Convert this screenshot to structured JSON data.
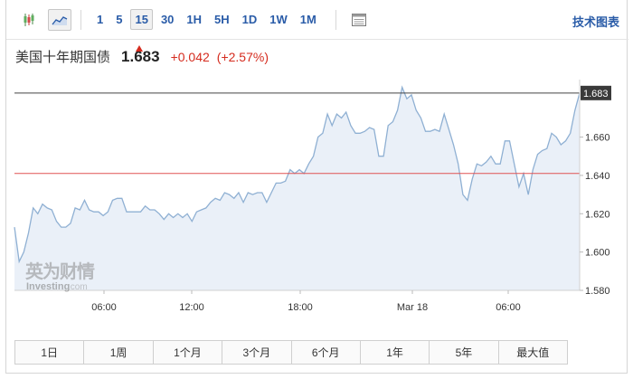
{
  "toolbar": {
    "intervals": [
      "1",
      "5",
      "15",
      "30",
      "1H",
      "5H",
      "1D",
      "1W",
      "1M"
    ],
    "active_interval": "15",
    "tech_chart_label": "技术图表"
  },
  "header": {
    "instrument": "美国十年期国债",
    "price": "1.683",
    "change": "+0.042",
    "change_pct": "(+2.57%)"
  },
  "watermark": {
    "cn": "英为财情",
    "en_main": "Investing",
    "en_suffix": ".com"
  },
  "colors": {
    "accent": "#2a5ca8",
    "negative_change": "#d52b1e",
    "line": "#8fb0d3",
    "area": "#eaf0f8",
    "prev_close_line": "#e05353"
  },
  "ranges": [
    "1日",
    "1周",
    "1个月",
    "3个月",
    "6个月",
    "1年",
    "5年",
    "最大值"
  ],
  "chart_data": {
    "type": "area",
    "y_ticks": [
      "1.580",
      "1.600",
      "1.620",
      "1.640",
      "1.660"
    ],
    "x_ticks": [
      "06:00",
      "12:00",
      "18:00",
      "Mar 18",
      "06:00"
    ],
    "ylim": [
      1.58,
      1.69
    ],
    "current_price_label": "1.683",
    "current_price": 1.683,
    "reference_line": 1.641,
    "values": [
      1.613,
      1.595,
      1.6,
      1.61,
      1.623,
      1.62,
      1.625,
      1.623,
      1.622,
      1.616,
      1.613,
      1.613,
      1.615,
      1.623,
      1.622,
      1.627,
      1.622,
      1.621,
      1.621,
      1.619,
      1.621,
      1.627,
      1.628,
      1.628,
      1.621,
      1.621,
      1.621,
      1.621,
      1.624,
      1.622,
      1.622,
      1.62,
      1.617,
      1.62,
      1.618,
      1.62,
      1.618,
      1.62,
      1.616,
      1.621,
      1.622,
      1.623,
      1.626,
      1.628,
      1.627,
      1.631,
      1.63,
      1.628,
      1.631,
      1.626,
      1.631,
      1.63,
      1.631,
      1.631,
      1.626,
      1.631,
      1.636,
      1.636,
      1.637,
      1.643,
      1.641,
      1.643,
      1.641,
      1.646,
      1.65,
      1.66,
      1.662,
      1.672,
      1.666,
      1.672,
      1.67,
      1.673,
      1.666,
      1.662,
      1.662,
      1.663,
      1.665,
      1.664,
      1.65,
      1.65,
      1.666,
      1.668,
      1.674,
      1.686,
      1.68,
      1.682,
      1.674,
      1.67,
      1.663,
      1.663,
      1.664,
      1.663,
      1.672,
      1.664,
      1.656,
      1.646,
      1.63,
      1.627,
      1.638,
      1.646,
      1.645,
      1.647,
      1.65,
      1.646,
      1.646,
      1.658,
      1.658,
      1.646,
      1.634,
      1.641,
      1.63,
      1.643,
      1.651,
      1.653,
      1.654,
      1.662,
      1.66,
      1.656,
      1.658,
      1.662,
      1.674,
      1.683
    ]
  }
}
